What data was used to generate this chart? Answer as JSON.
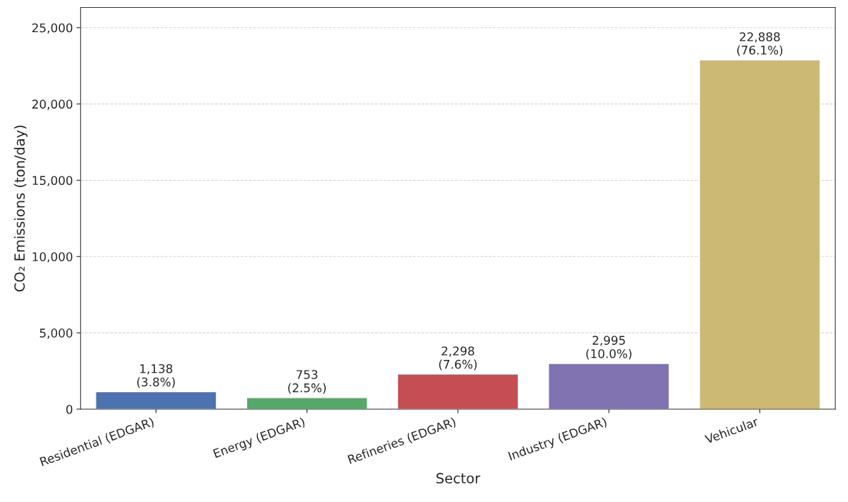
{
  "chart_data": {
    "type": "bar",
    "xlabel": "Sector",
    "ylabel": "CO₂ Emissions (ton/day)",
    "categories": [
      "Residential (EDGAR)",
      "Energy (EDGAR)",
      "Refineries (EDGAR)",
      "Industry (EDGAR)",
      "Vehicular"
    ],
    "values": [
      1138,
      753,
      2298,
      2995,
      22888
    ],
    "colors": [
      "#4c72b0",
      "#55a868",
      "#c44e52",
      "#8172b2",
      "#ccb974"
    ],
    "value_labels": [
      "1,138\n(3.8%)",
      "753\n(2.5%)",
      "2,298\n(7.6%)",
      "2,995\n(10.0%)",
      "22,888\n(76.1%)"
    ],
    "ylim": [
      0,
      26321
    ],
    "yticks": [
      {
        "value": 0,
        "label": "0"
      },
      {
        "value": 5000,
        "label": "5,000"
      },
      {
        "value": 10000,
        "label": "10,000"
      },
      {
        "value": 15000,
        "label": "15,000"
      },
      {
        "value": 20000,
        "label": "20,000"
      },
      {
        "value": 25000,
        "label": "25,000"
      }
    ],
    "grid": "y",
    "legend": false
  }
}
